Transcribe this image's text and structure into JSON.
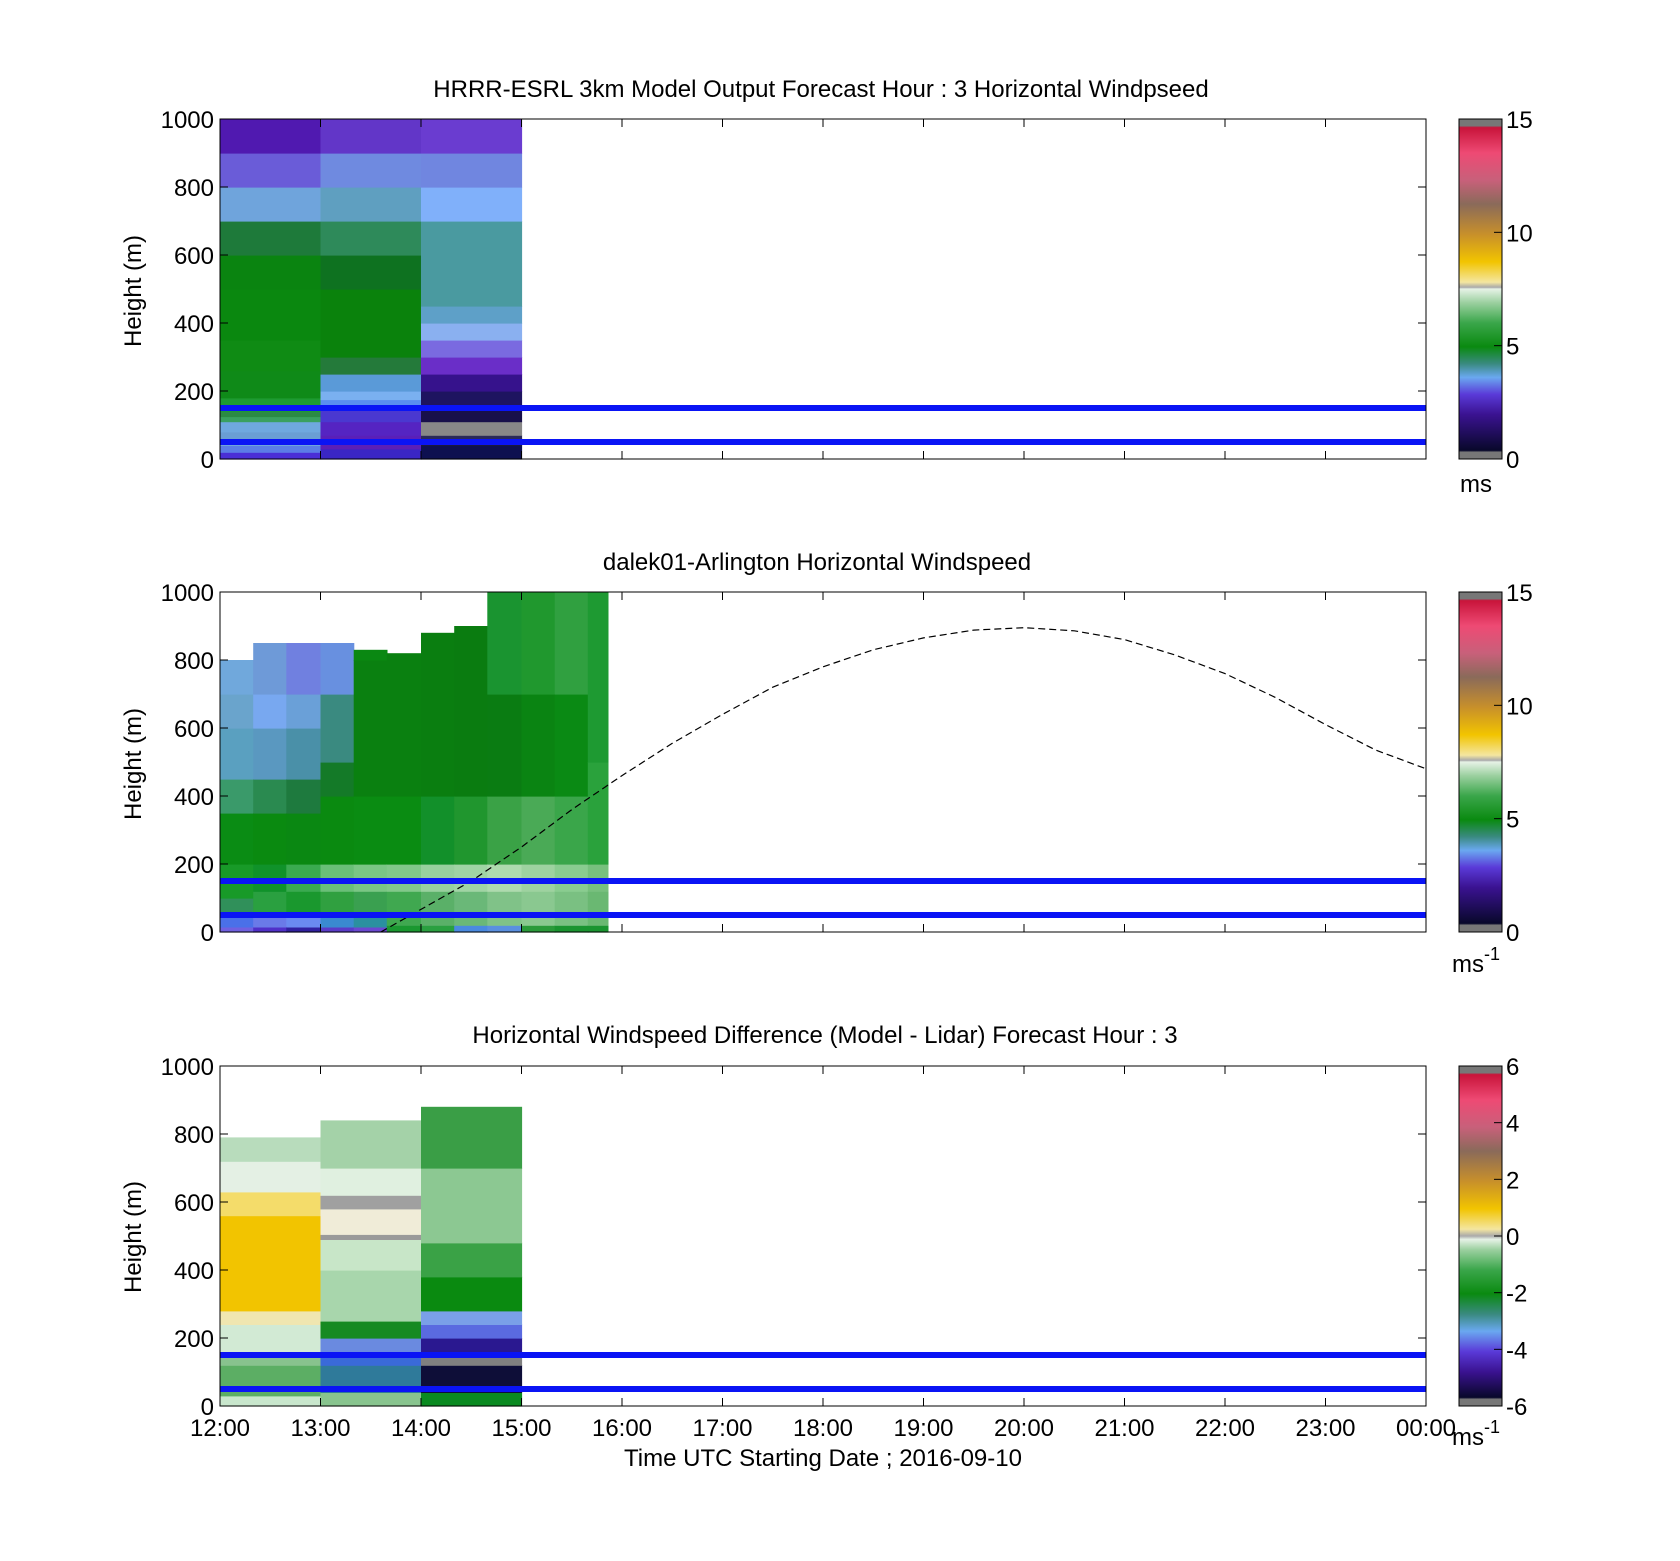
{
  "chart_data": [
    {
      "type": "heatmap",
      "title": "HRRR-ESRL 3km Model Output   Forecast Hour : 3 Horizontal Windpseed",
      "ylabel": "Height (m)",
      "yticks": [
        "0",
        "200",
        "400",
        "600",
        "800",
        "1000"
      ],
      "ylim": [
        0,
        1000
      ],
      "xlim": [
        0,
        12
      ],
      "colorbar": {
        "ticks": [
          "0",
          "5",
          "10",
          "15"
        ],
        "range": [
          0,
          15
        ],
        "unit": "ms",
        "unit_sup": ""
      },
      "reference_heights": [
        50,
        150
      ],
      "reference_color": "#0a14f5",
      "columns": [
        {
          "x": [
            0,
            1
          ],
          "cells": [
            [
              0,
              20,
              "#4a2fd6"
            ],
            [
              20,
              40,
              "#5b7de6"
            ],
            [
              40,
              60,
              "#6fa4dc"
            ],
            [
              60,
              80,
              "#6a9ed4"
            ],
            [
              80,
              110,
              "#6fa8df"
            ],
            [
              110,
              125,
              "#3aa060"
            ],
            [
              125,
              140,
              "#2b8a44"
            ],
            [
              140,
              180,
              "#1e9a32"
            ],
            [
              180,
              260,
              "#0f8a18"
            ],
            [
              260,
              350,
              "#0f8b14"
            ],
            [
              350,
              500,
              "#0a880f"
            ],
            [
              500,
              600,
              "#0a8410"
            ],
            [
              600,
              700,
              "#1e7a3a"
            ],
            [
              700,
              800,
              "#6fa4dc"
            ],
            [
              800,
              900,
              "#6a5cd8"
            ],
            [
              900,
              1000,
              "#5019b0"
            ]
          ]
        },
        {
          "x": [
            1,
            2
          ],
          "cells": [
            [
              0,
              30,
              "#3a26c4"
            ],
            [
              30,
              70,
              "#5a1fb8"
            ],
            [
              70,
              110,
              "#5524c2"
            ],
            [
              110,
              150,
              "#4a38d0"
            ],
            [
              150,
              175,
              "#5a8ef0"
            ],
            [
              175,
              200,
              "#7ab0f0"
            ],
            [
              200,
              250,
              "#5a9ad8"
            ],
            [
              250,
              300,
              "#247a3a"
            ],
            [
              300,
              500,
              "#0a820c"
            ],
            [
              500,
              600,
              "#0e7220"
            ],
            [
              600,
              700,
              "#2e8a5a"
            ],
            [
              700,
              800,
              "#5f9fc0"
            ],
            [
              800,
              900,
              "#6f8ae0"
            ],
            [
              900,
              1000,
              "#6236c8"
            ]
          ]
        },
        {
          "x": [
            2,
            3
          ],
          "cells": [
            [
              0,
              40,
              "#0e1050"
            ],
            [
              40,
              60,
              "#1a1840"
            ],
            [
              60,
              70,
              "#2a2a5a"
            ],
            [
              70,
              110,
              "#888888"
            ],
            [
              110,
              150,
              "#18104a"
            ],
            [
              150,
              200,
              "#1e1460"
            ],
            [
              200,
              250,
              "#36128c"
            ],
            [
              250,
              300,
              "#6a2ec8"
            ],
            [
              300,
              350,
              "#7a6ae0"
            ],
            [
              350,
              400,
              "#8ab0f0"
            ],
            [
              400,
              450,
              "#5ea0c8"
            ],
            [
              450,
              700,
              "#4a9aa0"
            ],
            [
              700,
              800,
              "#80b0fa"
            ],
            [
              800,
              900,
              "#7086e0"
            ],
            [
              900,
              1000,
              "#6a3cd0"
            ]
          ]
        }
      ]
    },
    {
      "type": "heatmap",
      "title": "dalek01-Arlington  Horizontal Windspeed",
      "ylabel": "Height (m)",
      "yticks": [
        "0",
        "200",
        "400",
        "600",
        "800",
        "1000"
      ],
      "ylim": [
        0,
        1000
      ],
      "xlim": [
        0,
        12
      ],
      "colorbar": {
        "ticks": [
          "0",
          "5",
          "10",
          "15"
        ],
        "range": [
          0,
          15
        ],
        "unit": "ms",
        "unit_sup": "-1"
      },
      "reference_heights": [
        50,
        150
      ],
      "reference_color": "#0a14f5",
      "line_series": {
        "style": "dashed",
        "points": [
          [
            1.6,
            0
          ],
          [
            2.5,
            150
          ],
          [
            3.0,
            250
          ],
          [
            3.5,
            360
          ],
          [
            4.0,
            460
          ],
          [
            4.5,
            555
          ],
          [
            5.0,
            640
          ],
          [
            5.5,
            720
          ],
          [
            6.0,
            780
          ],
          [
            6.5,
            830
          ],
          [
            7.0,
            865
          ],
          [
            7.5,
            888
          ],
          [
            8.0,
            895
          ],
          [
            8.5,
            886
          ],
          [
            9.0,
            860
          ],
          [
            9.5,
            815
          ],
          [
            10.0,
            760
          ],
          [
            10.5,
            690
          ],
          [
            11.0,
            610
          ],
          [
            11.5,
            535
          ],
          [
            12.0,
            480
          ]
        ]
      },
      "columns": [
        {
          "x": [
            0,
            0.33
          ],
          "cells": [
            [
              0,
              15,
              "#7060e0"
            ],
            [
              15,
              50,
              "#4a70e8"
            ],
            [
              50,
              100,
              "#30905a"
            ],
            [
              100,
              200,
              "#189a28"
            ],
            [
              200,
              350,
              "#0a8c14"
            ],
            [
              350,
              450,
              "#3a9a6a"
            ],
            [
              450,
              600,
              "#5aa0c0"
            ],
            [
              600,
              700,
              "#6aa4cc"
            ],
            [
              700,
              800,
              "#70a8dc"
            ]
          ]
        },
        {
          "x": [
            0.33,
            0.66
          ],
          "cells": [
            [
              0,
              15,
              "#5030c8"
            ],
            [
              15,
              50,
              "#6a7ae8"
            ],
            [
              50,
              120,
              "#2aa040"
            ],
            [
              120,
              200,
              "#10922a"
            ],
            [
              200,
              350,
              "#0a8a10"
            ],
            [
              350,
              450,
              "#2a8a50"
            ],
            [
              450,
              600,
              "#5a98c0"
            ],
            [
              600,
              700,
              "#78a8f0"
            ],
            [
              700,
              850,
              "#6e9ad8"
            ]
          ]
        },
        {
          "x": [
            0.66,
            1.0
          ],
          "cells": [
            [
              0,
              15,
              "#3020a0"
            ],
            [
              15,
              50,
              "#6a8af0"
            ],
            [
              50,
              120,
              "#1a982e"
            ],
            [
              120,
              200,
              "#3aaa50"
            ],
            [
              200,
              350,
              "#0a8812"
            ],
            [
              350,
              450,
              "#1e7a3e"
            ],
            [
              450,
              600,
              "#4a90a8"
            ],
            [
              600,
              700,
              "#6aa0d8"
            ],
            [
              700,
              850,
              "#7080e0"
            ]
          ]
        },
        {
          "x": [
            1.0,
            1.33
          ],
          "cells": [
            [
              0,
              15,
              "#5a3cc8"
            ],
            [
              15,
              50,
              "#3a8ad0"
            ],
            [
              50,
              120,
              "#30a040"
            ],
            [
              120,
              200,
              "#6abf78"
            ],
            [
              200,
              400,
              "#0a8a10"
            ],
            [
              400,
              500,
              "#147a28"
            ],
            [
              500,
              700,
              "#3a8a80"
            ],
            [
              700,
              850,
              "#6890e0"
            ]
          ]
        },
        {
          "x": [
            1.33,
            1.66
          ],
          "cells": [
            [
              0,
              15,
              "#6a48d0"
            ],
            [
              15,
              50,
              "#2a90a0"
            ],
            [
              50,
              120,
              "#3aa050"
            ],
            [
              120,
              200,
              "#7ac684"
            ],
            [
              200,
              400,
              "#0a8c12"
            ],
            [
              400,
              800,
              "#0a8010"
            ],
            [
              800,
              830,
              "#0a8812"
            ]
          ]
        },
        {
          "x": [
            1.66,
            2.0
          ],
          "cells": [
            [
              0,
              20,
              "#1a9830"
            ],
            [
              20,
              120,
              "#40a850"
            ],
            [
              120,
              200,
              "#82c88a"
            ],
            [
              200,
              400,
              "#0a8c12"
            ],
            [
              400,
              820,
              "#0a8010"
            ]
          ]
        },
        {
          "x": [
            2.0,
            2.33
          ],
          "cells": [
            [
              0,
              20,
              "#2aa040"
            ],
            [
              20,
              120,
              "#5ab068"
            ],
            [
              120,
              200,
              "#98d09e"
            ],
            [
              200,
              400,
              "#12902a"
            ],
            [
              400,
              880,
              "#0a7e10"
            ]
          ]
        },
        {
          "x": [
            2.33,
            2.66
          ],
          "cells": [
            [
              0,
              20,
              "#4a8ae0"
            ],
            [
              20,
              120,
              "#6ab878"
            ],
            [
              120,
              200,
              "#a0d4a4"
            ],
            [
              200,
              400,
              "#20962e"
            ],
            [
              400,
              900,
              "#0a7c10"
            ]
          ]
        },
        {
          "x": [
            2.66,
            3.0
          ],
          "cells": [
            [
              0,
              20,
              "#5a90e0"
            ],
            [
              20,
              120,
              "#80c288"
            ],
            [
              120,
              200,
              "#aedaae"
            ],
            [
              200,
              400,
              "#3aa246"
            ],
            [
              400,
              700,
              "#0a7c12"
            ],
            [
              700,
              1000,
              "#1a9430"
            ]
          ]
        },
        {
          "x": [
            3.0,
            3.33
          ],
          "cells": [
            [
              0,
              20,
              "#2a9a3a"
            ],
            [
              20,
              120,
              "#8ac890"
            ],
            [
              120,
              200,
              "#9ed2a0"
            ],
            [
              200,
              400,
              "#4aaa56"
            ],
            [
              400,
              700,
              "#0a8412"
            ],
            [
              700,
              1000,
              "#20982e"
            ]
          ]
        },
        {
          "x": [
            3.33,
            3.66
          ],
          "cells": [
            [
              0,
              20,
              "#1a9430"
            ],
            [
              20,
              120,
              "#7ac082"
            ],
            [
              120,
              200,
              "#8acc90"
            ],
            [
              200,
              400,
              "#3aa64a"
            ],
            [
              400,
              700,
              "#0a8a14"
            ],
            [
              700,
              1000,
              "#30a040"
            ]
          ]
        },
        {
          "x": [
            3.66,
            3.86
          ],
          "cells": [
            [
              0,
              20,
              "#1a9430"
            ],
            [
              20,
              120,
              "#6ab872"
            ],
            [
              120,
              200,
              "#78c07e"
            ],
            [
              200,
              500,
              "#2aa23c"
            ],
            [
              500,
              1000,
              "#1e9a32"
            ]
          ]
        }
      ]
    },
    {
      "type": "heatmap",
      "title": "Horizontal Windspeed Difference (Model - Lidar) Forecast Hour : 3",
      "ylabel": "Height (m)",
      "xlabel": "Time UTC  Starting Date ; 2016-09-10",
      "yticks": [
        "0",
        "200",
        "400",
        "600",
        "800",
        "1000"
      ],
      "xticks": [
        "12:00",
        "13:00",
        "14:00",
        "15:00",
        "16:00",
        "17:00",
        "18:00",
        "19:00",
        "20:00",
        "21:00",
        "22:00",
        "23:00",
        "00:00"
      ],
      "ylim": [
        0,
        1000
      ],
      "xlim": [
        0,
        12
      ],
      "colorbar": {
        "ticks": [
          "-6",
          "-4",
          "-2",
          "0",
          "2",
          "4",
          "6"
        ],
        "range": [
          -6,
          6
        ],
        "unit": "ms",
        "unit_sup": "-1"
      },
      "reference_heights": [
        50,
        150
      ],
      "reference_color": "#0a14f5",
      "columns": [
        {
          "x": [
            0,
            1
          ],
          "cells": [
            [
              0,
              30,
              "#c8e6cc"
            ],
            [
              30,
              120,
              "#5cae64"
            ],
            [
              120,
              150,
              "#88c28e"
            ],
            [
              150,
              240,
              "#d2ead4"
            ],
            [
              240,
              280,
              "#f0e6b0"
            ],
            [
              280,
              560,
              "#f2c400"
            ],
            [
              560,
              630,
              "#f4dc6a"
            ],
            [
              630,
              720,
              "#e4f0e4"
            ],
            [
              720,
              790,
              "#b8dcbc"
            ]
          ]
        },
        {
          "x": [
            1,
            2
          ],
          "cells": [
            [
              0,
              40,
              "#88c48e"
            ],
            [
              40,
              120,
              "#2f7a9a"
            ],
            [
              120,
              160,
              "#3a6ad8"
            ],
            [
              160,
              200,
              "#6a8ae0"
            ],
            [
              200,
              250,
              "#168a22"
            ],
            [
              250,
              400,
              "#a8d6ac"
            ],
            [
              400,
              490,
              "#c8e6c8"
            ],
            [
              490,
              505,
              "#9a9a9a"
            ],
            [
              505,
              580,
              "#f0ecd8"
            ],
            [
              580,
              620,
              "#a0a0a0"
            ],
            [
              620,
              700,
              "#e0f0e0"
            ],
            [
              700,
              840,
              "#a4d2a8"
            ]
          ]
        },
        {
          "x": [
            2,
            3
          ],
          "cells": [
            [
              0,
              40,
              "#0a8a20"
            ],
            [
              40,
              120,
              "#0e0e38"
            ],
            [
              120,
              150,
              "#808080"
            ],
            [
              150,
              200,
              "#2a1890"
            ],
            [
              200,
              240,
              "#5a6ae0"
            ],
            [
              240,
              280,
              "#7aa0e8"
            ],
            [
              280,
              380,
              "#0a8a10"
            ],
            [
              380,
              480,
              "#3aa246"
            ],
            [
              480,
              700,
              "#8cc892"
            ],
            [
              700,
              880,
              "#3a9e46"
            ]
          ]
        }
      ]
    }
  ]
}
